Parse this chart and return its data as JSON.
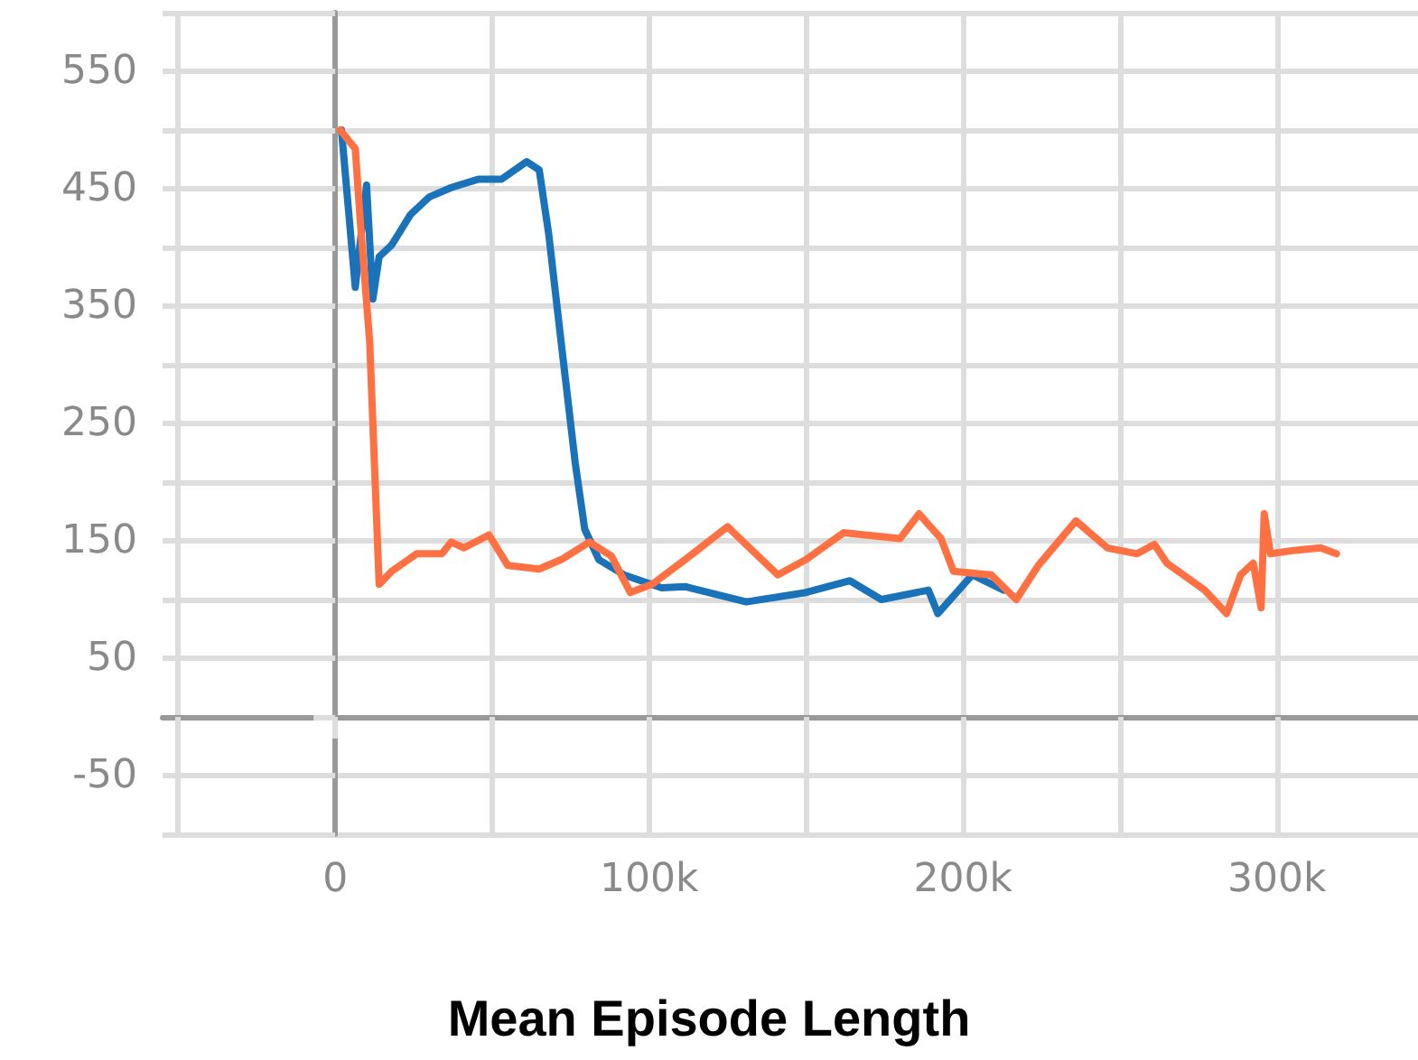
{
  "chart_data": {
    "type": "line",
    "title": "Mean Episode Length",
    "xlim": [
      -55000,
      345000
    ],
    "xticks": [
      {
        "value": -50000,
        "label": null
      },
      0,
      {
        "value": 50000,
        "label": null
      },
      {
        "value": 100000,
        "label": "100k"
      },
      {
        "value": 150000,
        "label": null
      },
      {
        "value": 200000,
        "label": "200k"
      },
      {
        "value": 250000,
        "label": null
      },
      {
        "value": 300000,
        "label": "300k"
      }
    ],
    "ylim": [
      -100,
      600
    ],
    "yticks": [
      {
        "value": -100,
        "label": null
      },
      -50,
      {
        "value": 0,
        "label": null
      },
      50,
      {
        "value": 100,
        "label": null
      },
      150,
      {
        "value": 200,
        "label": null
      },
      250,
      {
        "value": 300,
        "label": null
      },
      350,
      {
        "value": 400,
        "label": null
      },
      450,
      {
        "value": 500,
        "label": null
      },
      550,
      {
        "value": 600,
        "label": null
      }
    ],
    "grid": true,
    "marker": "none",
    "line_style": "solid",
    "series": [
      {
        "color": "#1a72b8",
        "x": [
          2000,
          6400,
          10000,
          12000,
          14000,
          18000,
          24000,
          30000,
          37000,
          45500,
          53000,
          61000,
          65000,
          68000,
          72000,
          76500,
          79500,
          84000,
          92000,
          104000,
          111500,
          131000,
          150000,
          164000,
          174000,
          189000,
          192000,
          203000,
          213000
        ],
        "values": [
          500,
          366,
          453,
          356,
          392,
          402,
          428,
          443,
          451,
          458,
          458,
          473,
          466,
          412,
          319,
          216,
          160,
          134,
          121,
          110,
          111,
          98,
          106,
          116,
          100,
          108,
          88,
          121,
          108
        ]
      },
      {
        "color": "#ff7043",
        "x": [
          1600,
          6400,
          8000,
          11000,
          14000,
          18000,
          26000,
          34000,
          37000,
          41000,
          49000,
          55000,
          65000,
          72000,
          81000,
          88000,
          94000,
          101000,
          111500,
          125000,
          141000,
          150000,
          162000,
          180000,
          186000,
          193000,
          197000,
          209000,
          217000,
          224000,
          236000,
          246000,
          255500,
          261000,
          265000,
          277000,
          284000,
          288500,
          292500,
          295000,
          296000,
          298000,
          306000,
          314000,
          319000
        ],
        "values": [
          500,
          484,
          422,
          319,
          113,
          124,
          139,
          139,
          149,
          144,
          155,
          129,
          126,
          134,
          149,
          137,
          106,
          113,
          134,
          162,
          121,
          134,
          157,
          152,
          173,
          152,
          124,
          121,
          100,
          129,
          167,
          144,
          139,
          147,
          131,
          108,
          88,
          121,
          131,
          93,
          173,
          139,
          142,
          144,
          139
        ]
      }
    ]
  }
}
